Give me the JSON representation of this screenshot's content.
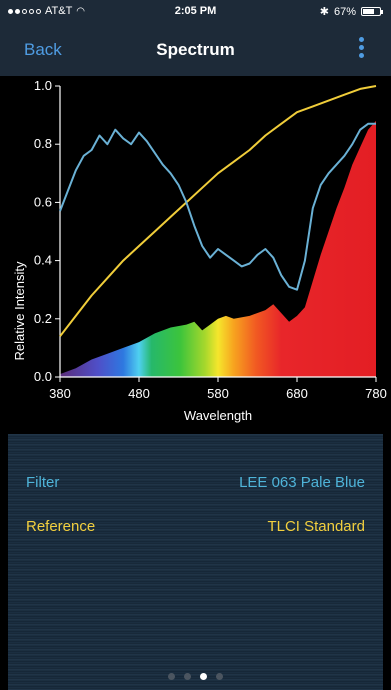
{
  "status": {
    "carrier": "AT&T",
    "time": "2:05 PM",
    "battery": "67%",
    "battery_level": 0.67
  },
  "nav": {
    "back_label": "Back",
    "title": "Spectrum"
  },
  "chart_data": {
    "type": "line",
    "xlabel": "Wavelength",
    "ylabel": "Relative Intensity",
    "xlim": [
      380,
      780
    ],
    "ylim": [
      0.0,
      1.0
    ],
    "xticks": [
      "380",
      "480",
      "580",
      "680",
      "780"
    ],
    "yticks": [
      "0.0",
      "0.2",
      "0.4",
      "0.6",
      "0.8",
      "1.0"
    ],
    "series": [
      {
        "color": "#f0cd3a",
        "x": [
          380,
          400,
          420,
          440,
          460,
          480,
          500,
          520,
          540,
          560,
          580,
          600,
          620,
          640,
          660,
          680,
          700,
          720,
          740,
          760,
          780
        ],
        "y": [
          0.14,
          0.21,
          0.28,
          0.34,
          0.4,
          0.45,
          0.5,
          0.55,
          0.6,
          0.65,
          0.7,
          0.74,
          0.78,
          0.83,
          0.87,
          0.91,
          0.93,
          0.95,
          0.97,
          0.99,
          1.0
        ]
      },
      {
        "color": "#6ab1d5",
        "x": [
          380,
          390,
          400,
          410,
          420,
          430,
          440,
          450,
          460,
          470,
          480,
          490,
          500,
          510,
          520,
          530,
          540,
          550,
          560,
          570,
          580,
          590,
          600,
          610,
          620,
          630,
          640,
          650,
          660,
          670,
          680,
          690,
          700,
          710,
          720,
          730,
          740,
          750,
          760,
          770,
          780
        ],
        "y": [
          0.57,
          0.64,
          0.71,
          0.76,
          0.78,
          0.83,
          0.8,
          0.85,
          0.82,
          0.8,
          0.84,
          0.81,
          0.77,
          0.73,
          0.7,
          0.66,
          0.6,
          0.52,
          0.45,
          0.41,
          0.44,
          0.42,
          0.4,
          0.38,
          0.39,
          0.42,
          0.44,
          0.41,
          0.35,
          0.31,
          0.3,
          0.4,
          0.58,
          0.66,
          0.7,
          0.73,
          0.76,
          0.8,
          0.85,
          0.87,
          0.87
        ]
      },
      {
        "type": "area",
        "x": [
          380,
          400,
          420,
          440,
          460,
          480,
          500,
          520,
          540,
          550,
          560,
          570,
          580,
          590,
          600,
          620,
          640,
          650,
          660,
          670,
          680,
          690,
          700,
          710,
          720,
          730,
          740,
          750,
          760,
          770,
          780
        ],
        "y": [
          0.01,
          0.03,
          0.06,
          0.08,
          0.1,
          0.12,
          0.15,
          0.17,
          0.18,
          0.19,
          0.16,
          0.18,
          0.2,
          0.21,
          0.2,
          0.21,
          0.23,
          0.25,
          0.22,
          0.19,
          0.21,
          0.24,
          0.33,
          0.42,
          0.5,
          0.58,
          0.65,
          0.73,
          0.79,
          0.85,
          0.88
        ]
      }
    ]
  },
  "settings": {
    "filter_label": "Filter",
    "filter_value": "LEE 063 Pale Blue",
    "reference_label": "Reference",
    "reference_value": "TLCI Standard"
  },
  "pager": {
    "count": 4,
    "active": 2
  },
  "colors": {
    "accent": "#4f9ce2",
    "filter_text": "#4fb4d9",
    "reference_text": "#f2cf3e",
    "navbar": "#1d2a38"
  }
}
